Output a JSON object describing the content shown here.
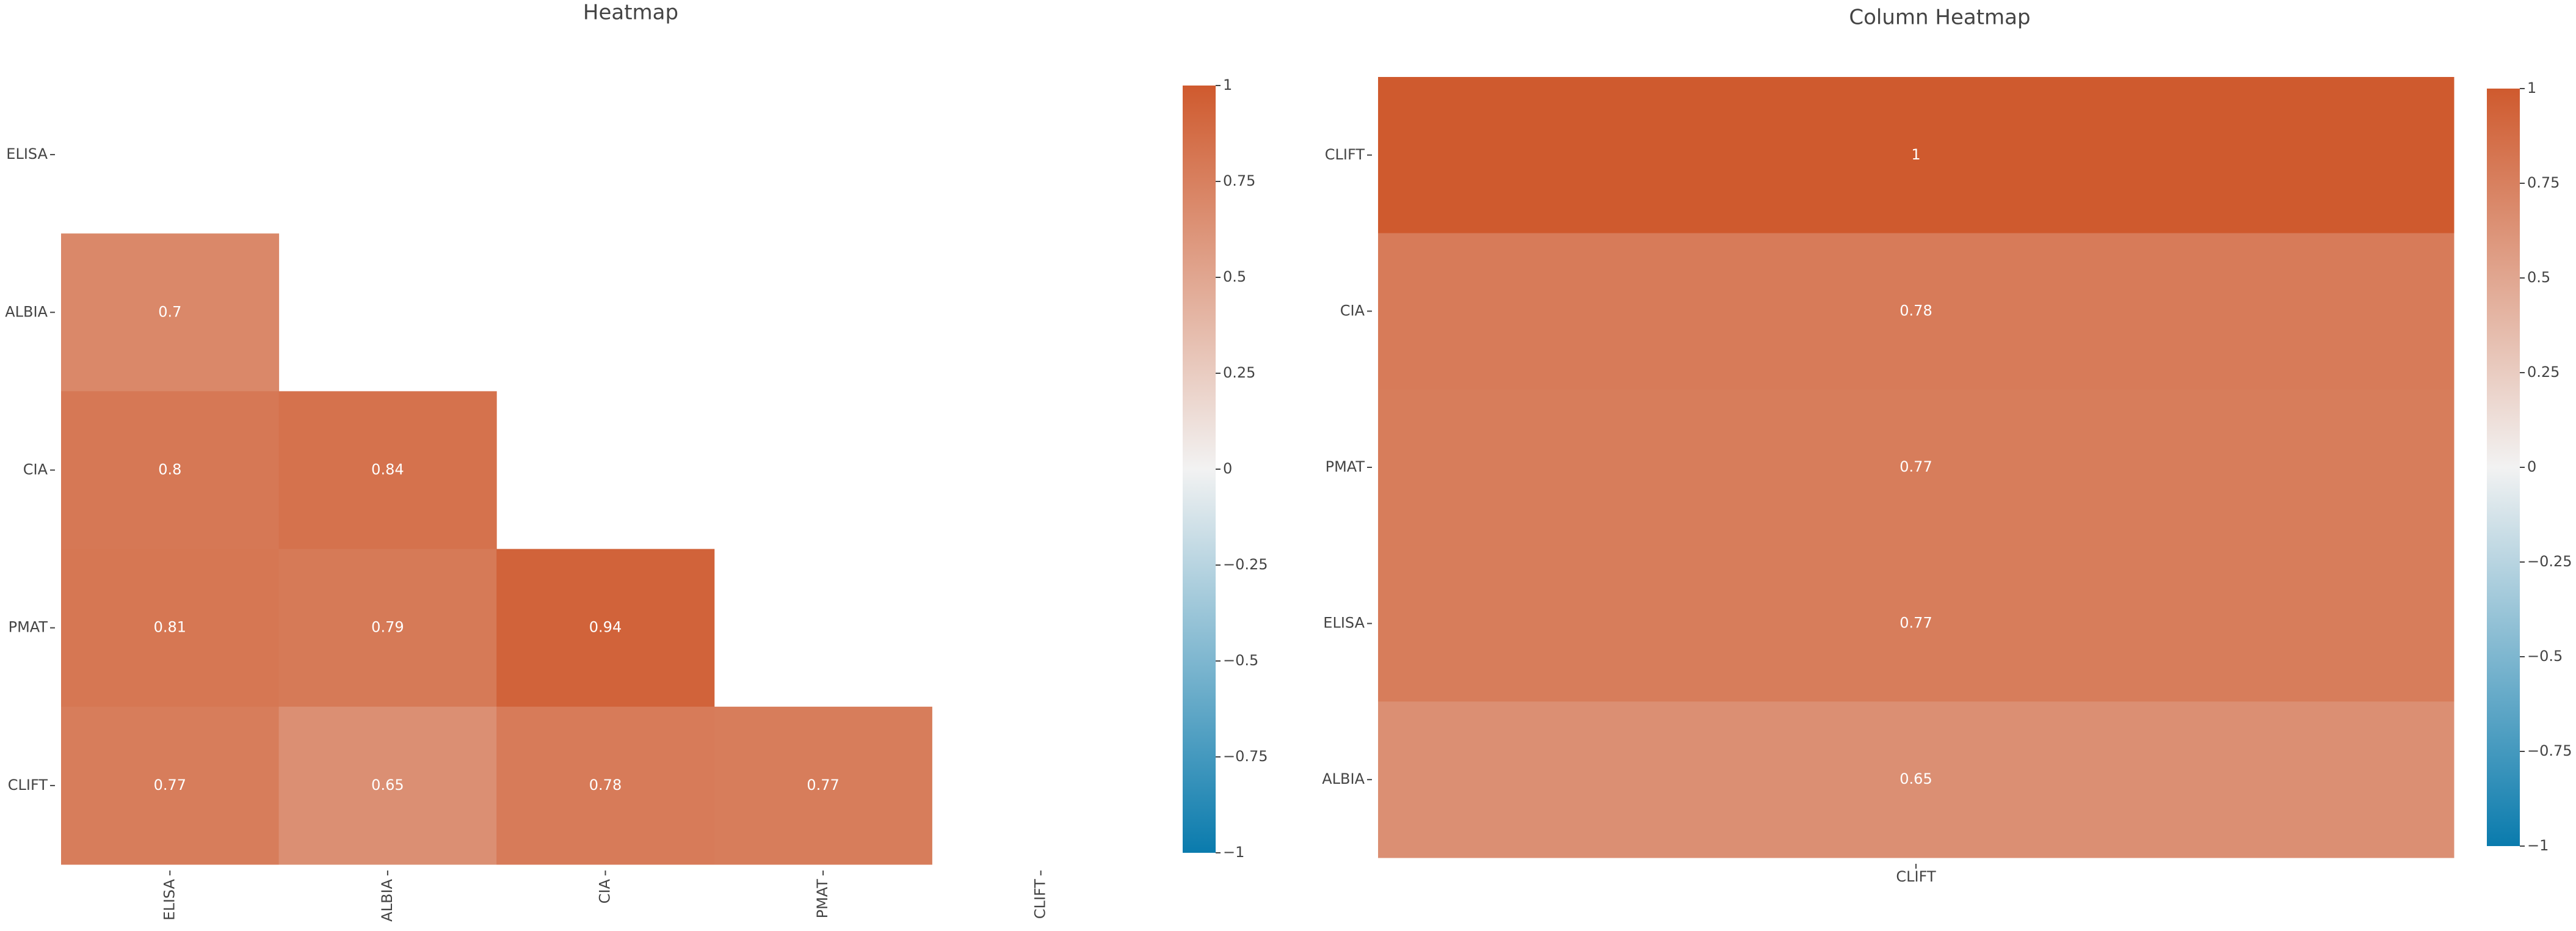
{
  "chart_data": [
    {
      "type": "heatmap",
      "title": "Heatmap",
      "x": [
        "ELISA",
        "ALBIA",
        "CIA",
        "PMAT",
        "CLIFT"
      ],
      "y": [
        "ELISA",
        "ALBIA",
        "CIA",
        "PMAT",
        "CLIFT"
      ],
      "values": [
        [
          null,
          null,
          null,
          null,
          null
        ],
        [
          0.7,
          null,
          null,
          null,
          null
        ],
        [
          0.8,
          0.84,
          null,
          null,
          null
        ],
        [
          0.81,
          0.79,
          0.94,
          null,
          null
        ],
        [
          0.77,
          0.65,
          0.78,
          0.77,
          null
        ]
      ],
      "colorscale": [
        "#0a7bad",
        "#f2f2f2",
        "#cf5a2e"
      ],
      "zlim": [
        -1,
        1
      ],
      "zticks": [
        {
          "value": -1,
          "label": "−1"
        },
        {
          "value": -0.75,
          "label": "−0.75"
        },
        {
          "value": -0.5,
          "label": "−0.5"
        },
        {
          "value": -0.25,
          "label": "−0.25"
        },
        0,
        0.25,
        0.5,
        0.75,
        1
      ]
    },
    {
      "type": "heatmap",
      "title": "Column Heatmap",
      "x": [
        "CLIFT"
      ],
      "y": [
        "CLIFT",
        "CIA",
        "PMAT",
        "ELISA",
        "ALBIA"
      ],
      "values": [
        [
          1
        ],
        [
          0.78
        ],
        [
          0.77
        ],
        [
          0.77
        ],
        [
          0.65
        ]
      ],
      "colorscale": [
        "#0a7bad",
        "#f2f2f2",
        "#cf5a2e"
      ],
      "zlim": [
        -1,
        1
      ],
      "zticks": [
        {
          "value": -1,
          "label": "−1"
        },
        {
          "value": -0.75,
          "label": "−0.75"
        },
        {
          "value": -0.5,
          "label": "−0.5"
        },
        {
          "value": -0.25,
          "label": "−0.25"
        },
        0,
        0.25,
        0.5,
        0.75,
        1
      ]
    }
  ]
}
